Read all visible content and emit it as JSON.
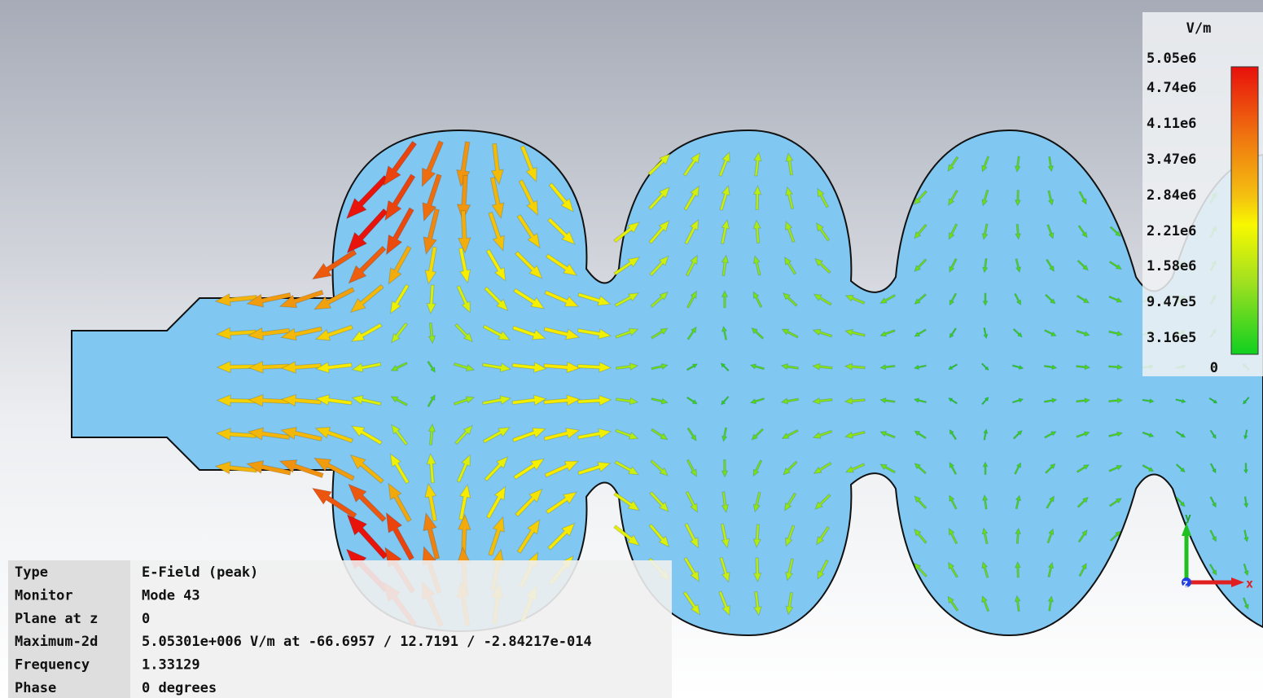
{
  "legend": {
    "unit": "V/m",
    "labels": [
      "5.05e6",
      "4.74e6",
      "4.11e6",
      "3.47e6",
      "2.84e6",
      "2.21e6",
      "1.58e6",
      "9.47e5",
      "3.16e5",
      "0"
    ]
  },
  "info": {
    "rows": [
      [
        "Type",
        "E-Field (peak)"
      ],
      [
        "Monitor",
        "Mode 43"
      ],
      [
        "Plane at z",
        "0"
      ],
      [
        "Maximum-2d",
        "5.05301e+006 V/m at -66.6957 / 12.7191 / -2.84217e-014"
      ],
      [
        "Frequency",
        "1.33129"
      ],
      [
        "Phase",
        "0 degrees"
      ]
    ]
  },
  "axes": {
    "x": "x",
    "y": "y",
    "z": "z"
  }
}
